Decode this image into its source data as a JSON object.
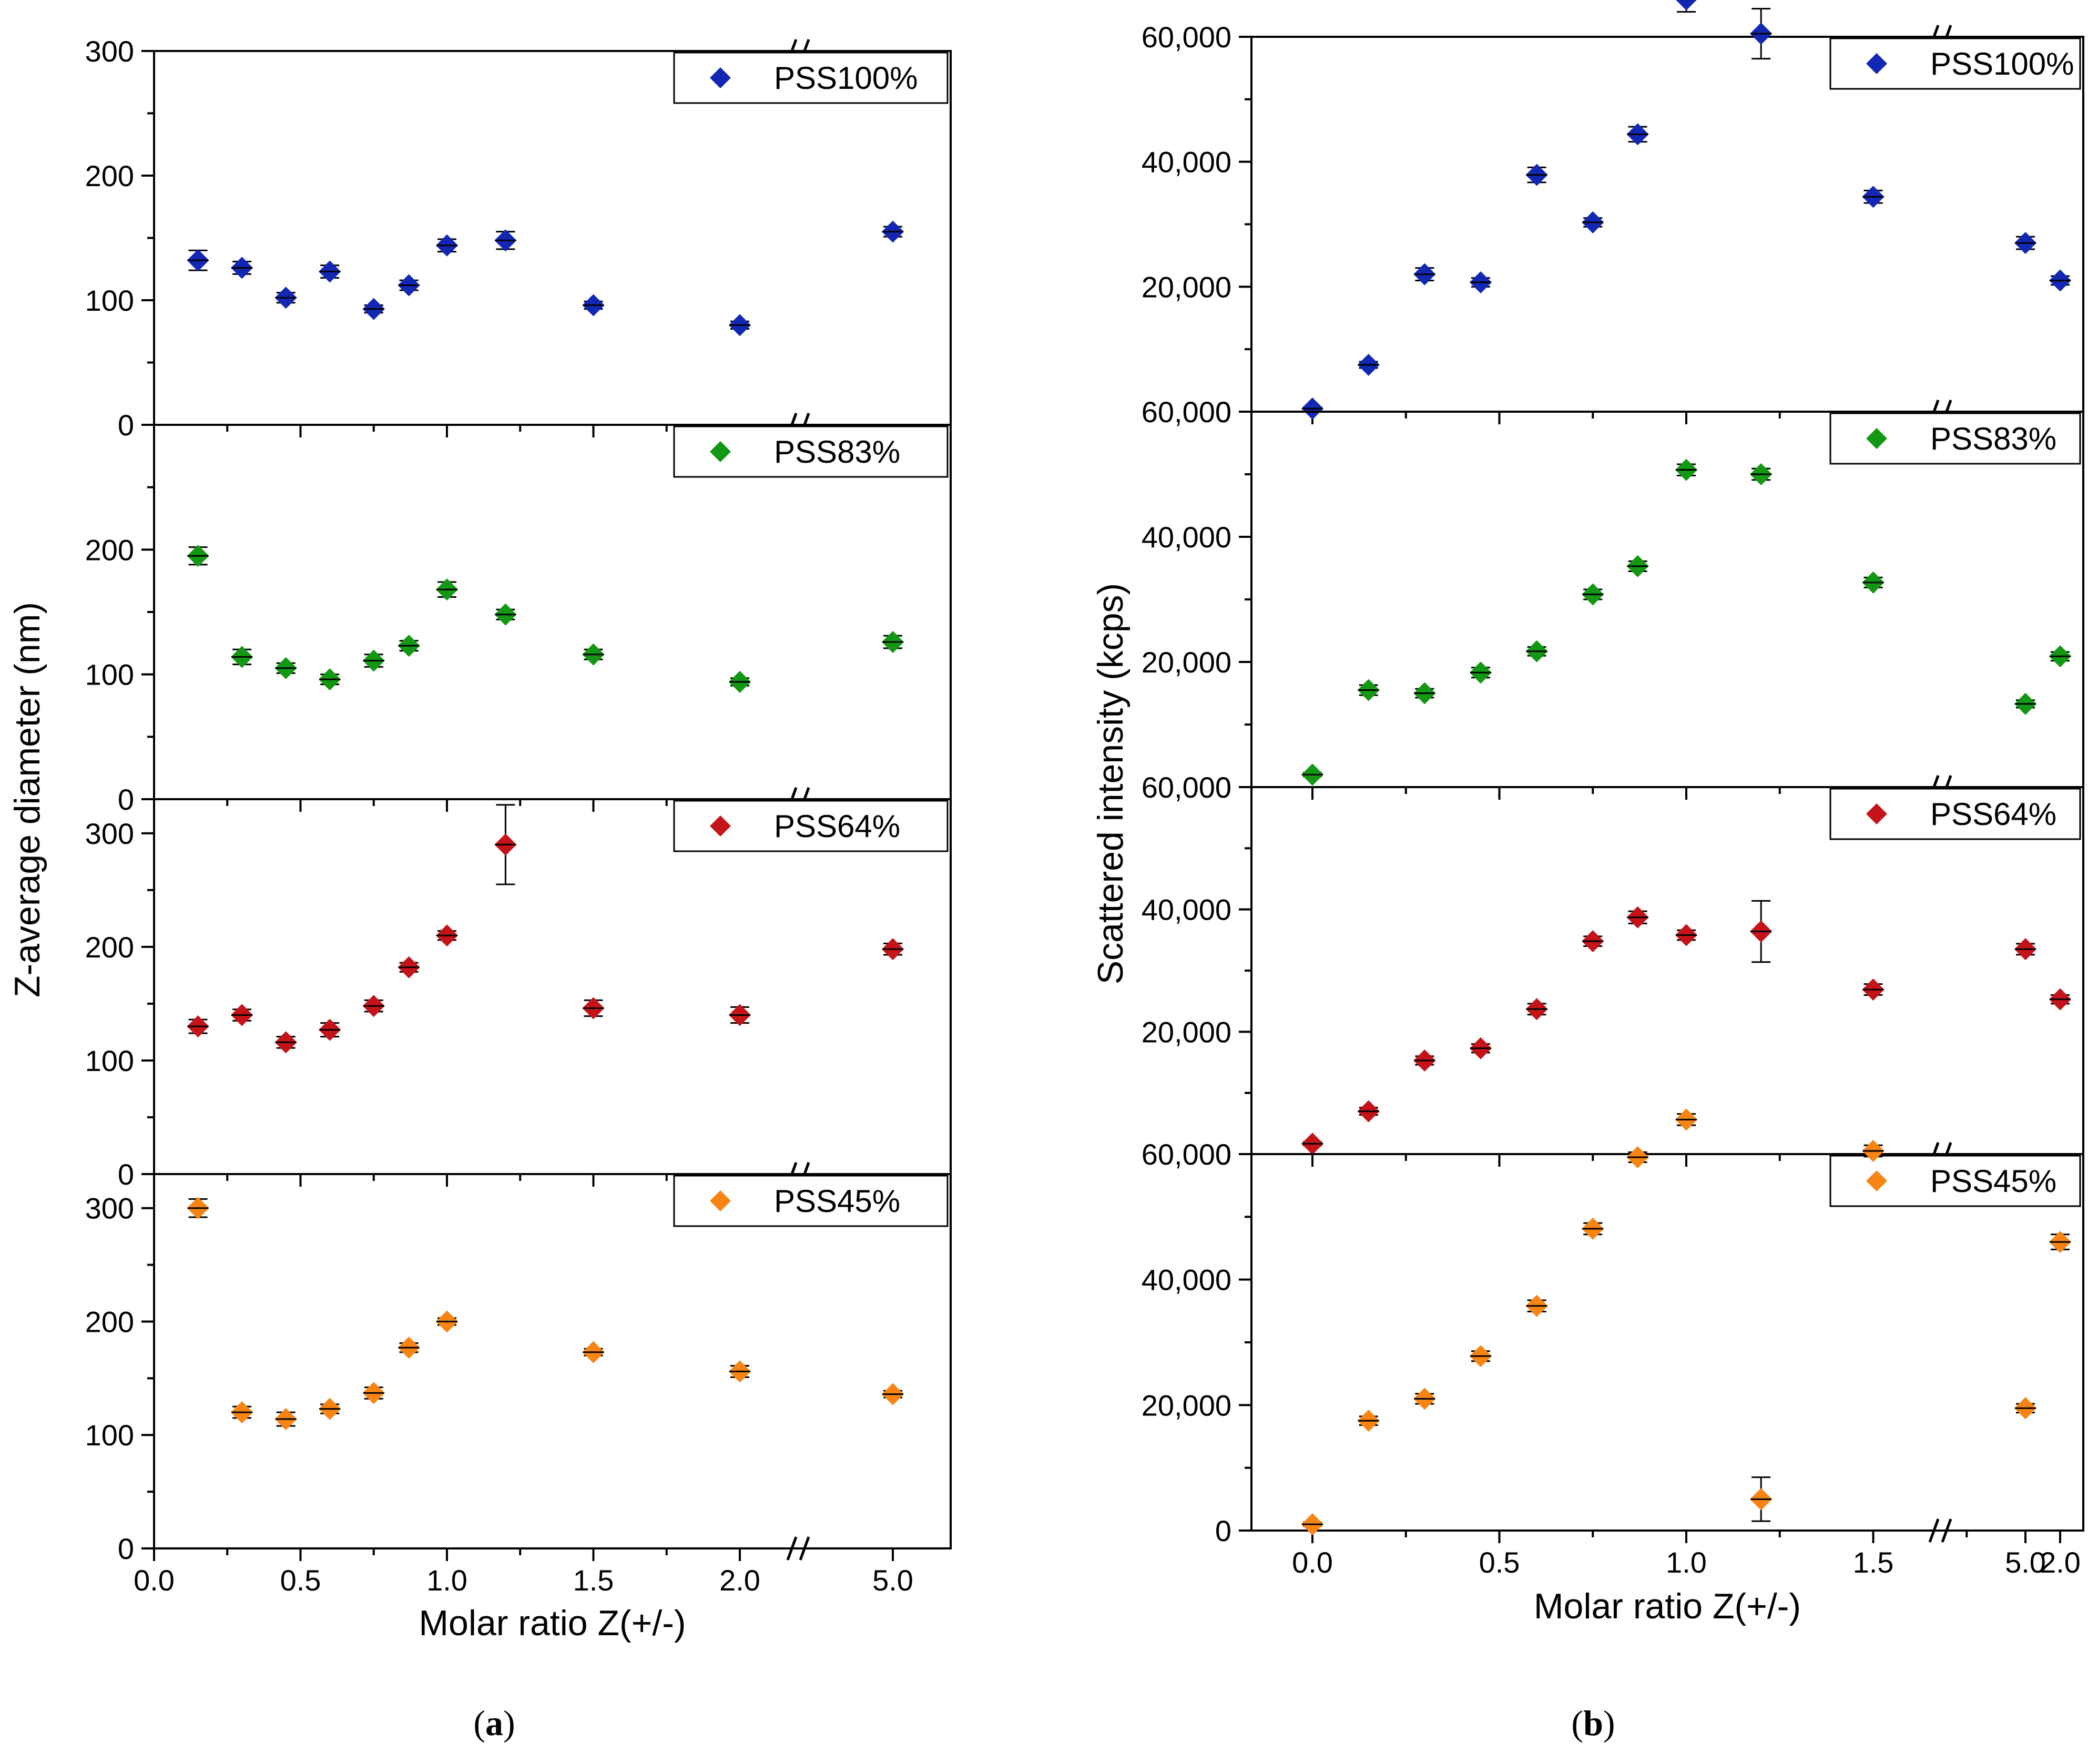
{
  "figure": {
    "panel_a": {
      "label_open": "(",
      "letter": "a",
      "label_close": ")"
    },
    "panel_b": {
      "label_open": "(",
      "letter": "b",
      "label_close": ")"
    }
  },
  "chart_data": [
    {
      "id": "a",
      "type": "scatter",
      "xlabel": "Molar ratio Z(+/-)",
      "ylabel": "Z-average diameter (nm)",
      "x_ticks": [
        "0.0",
        "0.5",
        "1.0",
        "1.5",
        "2.0",
        "5.0"
      ],
      "x_axis_break": "between 2.0 and 5.0",
      "marker": "diamond",
      "panels": [
        {
          "name": "PSS100%",
          "color": "#1228b5",
          "ylim": [
            0,
            300
          ],
          "y_ticks": [
            "0",
            "100",
            "200",
            "300"
          ],
          "points": [
            [
              0.15,
              132,
              8
            ],
            [
              0.3,
              126,
              5
            ],
            [
              0.45,
              102,
              4
            ],
            [
              0.6,
              123,
              5
            ],
            [
              0.75,
              93,
              3
            ],
            [
              0.87,
              112,
              4
            ],
            [
              1.0,
              144,
              5
            ],
            [
              1.2,
              148,
              7
            ],
            [
              1.5,
              96,
              3
            ],
            [
              2.0,
              80,
              3
            ],
            [
              5.0,
              155,
              4
            ]
          ]
        },
        {
          "name": "PSS83%",
          "color": "#129812",
          "ylim": [
            0,
            300
          ],
          "y_ticks": [
            "0",
            "100",
            "200"
          ],
          "points": [
            [
              0.15,
              195,
              7
            ],
            [
              0.3,
              114,
              6
            ],
            [
              0.45,
              105,
              4
            ],
            [
              0.6,
              96,
              4
            ],
            [
              0.75,
              111,
              5
            ],
            [
              0.87,
              123,
              4
            ],
            [
              1.0,
              168,
              6
            ],
            [
              1.2,
              148,
              4
            ],
            [
              1.5,
              116,
              4
            ],
            [
              2.0,
              94,
              3
            ],
            [
              5.0,
              126,
              5
            ]
          ]
        },
        {
          "name": "PSS64%",
          "color": "#c4141a",
          "ylim": [
            0,
            330
          ],
          "y_ticks": [
            "0",
            "100",
            "200",
            "300"
          ],
          "points": [
            [
              0.15,
              130,
              6
            ],
            [
              0.3,
              140,
              5
            ],
            [
              0.45,
              116,
              5
            ],
            [
              0.6,
              127,
              6
            ],
            [
              0.75,
              148,
              5
            ],
            [
              0.87,
              182,
              4
            ],
            [
              1.0,
              210,
              4
            ],
            [
              1.2,
              290,
              35
            ],
            [
              1.5,
              146,
              7
            ],
            [
              2.0,
              140,
              7
            ],
            [
              5.0,
              198,
              5
            ]
          ]
        },
        {
          "name": "PSS45%",
          "color": "#f78413",
          "ylim": [
            0,
            330
          ],
          "y_ticks": [
            "0",
            "100",
            "200",
            "300"
          ],
          "points": [
            [
              0.15,
              300,
              8
            ],
            [
              0.3,
              120,
              5
            ],
            [
              0.45,
              114,
              6
            ],
            [
              0.6,
              123,
              4
            ],
            [
              0.75,
              137,
              5
            ],
            [
              0.87,
              177,
              4
            ],
            [
              1.0,
              200,
              3
            ],
            [
              1.5,
              173,
              3
            ],
            [
              2.0,
              156,
              5
            ],
            [
              5.0,
              136,
              3
            ]
          ]
        }
      ]
    },
    {
      "id": "b",
      "type": "scatter",
      "xlabel": "Molar ratio Z(+/-)",
      "ylabel": "Scattered intensity (kcps)",
      "x_ticks": [
        "0.0",
        "0.5",
        "1.0",
        "1.5",
        "2.0",
        "5.0"
      ],
      "x_axis_break": "between 2.0 and 5.0",
      "marker": "diamond",
      "panels": [
        {
          "name": "PSS100%",
          "color": "#1228b5",
          "ylim": [
            0,
            60000
          ],
          "y_ticks": [
            "0",
            "20,000",
            "40,000",
            "60,000"
          ],
          "points": [
            [
              0.0,
              500,
              200
            ],
            [
              0.15,
              7500,
              500
            ],
            [
              0.3,
              22000,
              1000
            ],
            [
              0.45,
              20700,
              700
            ],
            [
              0.6,
              37900,
              1200
            ],
            [
              0.75,
              30300,
              700
            ],
            [
              0.87,
              44400,
              1200
            ],
            [
              1.0,
              66000,
              2000
            ],
            [
              1.2,
              60500,
              4000
            ],
            [
              1.5,
              34400,
              1000
            ],
            [
              2.0,
              21000,
              700
            ],
            [
              5.0,
              27000,
              1000
            ]
          ]
        },
        {
          "name": "PSS83%",
          "color": "#129812",
          "ylim": [
            0,
            60000
          ],
          "y_ticks": [
            "0",
            "20,000",
            "40,000",
            "60,000"
          ],
          "points": [
            [
              0.0,
              2000,
              300
            ],
            [
              0.15,
              15500,
              800
            ],
            [
              0.3,
              15000,
              700
            ],
            [
              0.45,
              18300,
              800
            ],
            [
              0.6,
              21700,
              700
            ],
            [
              0.75,
              30800,
              800
            ],
            [
              0.87,
              35300,
              800
            ],
            [
              1.0,
              50700,
              900
            ],
            [
              1.2,
              50000,
              900
            ],
            [
              1.5,
              32700,
              800
            ],
            [
              2.0,
              20900,
              700
            ],
            [
              5.0,
              13300,
              600
            ]
          ]
        },
        {
          "name": "PSS64%",
          "color": "#c4141a",
          "ylim": [
            0,
            60000
          ],
          "y_ticks": [
            "0",
            "20,000",
            "40,000",
            "60,000"
          ],
          "points": [
            [
              0.0,
              1700,
              300
            ],
            [
              0.15,
              7000,
              600
            ],
            [
              0.3,
              15300,
              700
            ],
            [
              0.45,
              17300,
              700
            ],
            [
              0.6,
              23700,
              900
            ],
            [
              0.75,
              34800,
              800
            ],
            [
              0.87,
              38700,
              1000
            ],
            [
              1.0,
              35800,
              800
            ],
            [
              1.2,
              36400,
              5000
            ],
            [
              1.5,
              26900,
              900
            ],
            [
              2.0,
              25300,
              700
            ],
            [
              5.0,
              33500,
              900
            ]
          ]
        },
        {
          "name": "PSS45%",
          "color": "#f78413",
          "ylim": [
            0,
            60000
          ],
          "y_ticks": [
            "0",
            "20,000",
            "40,000",
            "60,000"
          ],
          "points": [
            [
              0.0,
              1000,
              300
            ],
            [
              0.15,
              17500,
              700
            ],
            [
              0.3,
              21000,
              800
            ],
            [
              0.45,
              27800,
              800
            ],
            [
              0.6,
              35800,
              900
            ],
            [
              0.75,
              48100,
              900
            ],
            [
              0.87,
              59500,
              800
            ],
            [
              1.0,
              65500,
              900
            ],
            [
              1.2,
              5000,
              3500
            ],
            [
              1.5,
              60500,
              900
            ],
            [
              2.0,
              46000,
              1200
            ],
            [
              5.0,
              19500,
              700
            ]
          ]
        }
      ]
    }
  ]
}
